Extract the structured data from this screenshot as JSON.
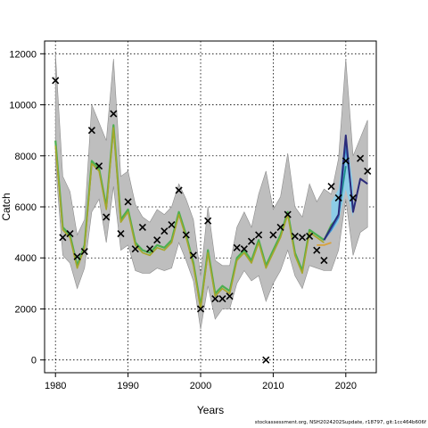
{
  "chart_data": {
    "type": "line",
    "xlabel": "Years",
    "ylabel": "Catch",
    "xlim": [
      1978.5,
      2024.2
    ],
    "ylim": [
      -500,
      12500
    ],
    "x_ticks": [
      1980,
      1990,
      2000,
      2010,
      2020
    ],
    "y_ticks": [
      0,
      2000,
      4000,
      6000,
      8000,
      10000,
      12000
    ],
    "grid": true,
    "colors": {
      "band": "#bebebe",
      "band_edge": "#8c8c8c",
      "inner_band": "#87ceeb",
      "line_dark": "#2b2b7a",
      "line_blue": "#3a86c8",
      "line_teal": "#1f8f8a",
      "line_green": "#4caf50",
      "line_olive": "#a6a62a",
      "line_orange": "#d8a23c"
    },
    "band": {
      "x": [
        1980,
        1981,
        1982,
        1983,
        1984,
        1985,
        1986,
        1987,
        1988,
        1989,
        1990,
        1991,
        1992,
        1993,
        1994,
        1995,
        1996,
        1997,
        1998,
        1999,
        2000,
        2001,
        2002,
        2003,
        2004,
        2005,
        2006,
        2007,
        2008,
        2009,
        2010,
        2011,
        2012,
        2013,
        2014,
        2015,
        2016,
        2017,
        2018,
        2019,
        2020,
        2021,
        2022,
        2023
      ],
      "upper": [
        12000,
        7200,
        6600,
        4900,
        5500,
        10000,
        9300,
        8600,
        11800,
        7200,
        7400,
        6100,
        5600,
        5400,
        5900,
        5700,
        6000,
        6900,
        6300,
        5500,
        3300,
        6000,
        3900,
        3700,
        3700,
        5200,
        5800,
        5200,
        6500,
        7400,
        5900,
        6400,
        8100,
        6000,
        5600,
        6900,
        6200,
        6700,
        6500,
        7900,
        11800,
        8000,
        8700,
        9400
      ],
      "lower": [
        7700,
        4100,
        3800,
        2800,
        3600,
        5800,
        6300,
        4600,
        6800,
        4300,
        4500,
        3500,
        3400,
        3400,
        3600,
        3500,
        3600,
        4600,
        3900,
        3100,
        1200,
        2900,
        1600,
        2000,
        2000,
        3000,
        3500,
        3100,
        3300,
        2300,
        3000,
        3500,
        4300,
        3300,
        2800,
        3700,
        3600,
        3500,
        3500,
        4300,
        6300,
        4100,
        5000,
        5200
      ]
    },
    "inner_band": {
      "x": [
        2018,
        2019,
        2020,
        2021
      ],
      "upper": [
        6200,
        6700,
        8900,
        6900
      ],
      "lower": [
        5000,
        5400,
        6700,
        5600
      ]
    },
    "series": [
      {
        "key": "main",
        "color": "#4caf50",
        "x": [
          1980,
          1981,
          1982,
          1983,
          1984,
          1985,
          1986,
          1987,
          1988,
          1989,
          1990,
          1991,
          1992,
          1993,
          1994,
          1995,
          1996,
          1997,
          1998,
          1999,
          2000,
          2001,
          2002,
          2003,
          2004,
          2005,
          2006,
          2007,
          2008,
          2009,
          2010,
          2011,
          2012,
          2013,
          2014,
          2015,
          2016,
          2017
        ],
        "y": [
          8600,
          5200,
          4900,
          3700,
          4500,
          7800,
          7500,
          6000,
          9200,
          5500,
          5900,
          4600,
          4300,
          4200,
          4500,
          4400,
          4700,
          5800,
          4900,
          3800,
          2100,
          4300,
          2600,
          2900,
          2700,
          4000,
          4300,
          3900,
          4700,
          3700,
          4300,
          4900,
          5800,
          4200,
          3500,
          5100,
          4900,
          4700
        ]
      },
      {
        "key": "dark",
        "color": "#2b2b7a",
        "x": [
          2017,
          2018,
          2019,
          2020,
          2021,
          2022,
          2023
        ],
        "y": [
          4700,
          5200,
          5700,
          8800,
          5800,
          7100,
          6900
        ]
      },
      {
        "key": "blue",
        "color": "#3a86c8",
        "x": [
          2017,
          2018,
          2019,
          2020,
          2021
        ],
        "y": [
          4700,
          5100,
          5600,
          8400,
          6000
        ]
      },
      {
        "key": "teal",
        "color": "#1f8f8a",
        "x": [
          2017,
          2018,
          2019,
          2020
        ],
        "y": [
          4700,
          5200,
          5700,
          7600
        ]
      },
      {
        "key": "green",
        "color": "#4caf50",
        "x": [
          2017,
          2018,
          2019
        ],
        "y": [
          4700,
          5300,
          5600
        ]
      },
      {
        "key": "olive",
        "color": "#a6a62a",
        "x": [
          1980,
          1981,
          1982,
          1983,
          1984,
          1985,
          1986,
          1987,
          1988,
          1989,
          1990,
          1991,
          1992,
          1993,
          1994,
          1995,
          1996,
          1997,
          1998,
          1999,
          2000,
          2001,
          2002,
          2003,
          2004,
          2005,
          2006,
          2007,
          2008,
          2009,
          2010,
          2011,
          2012,
          2013,
          2014,
          2015,
          2016,
          2017
        ],
        "y": [
          8400,
          5100,
          4800,
          3600,
          4400,
          7700,
          7400,
          5900,
          9100,
          5400,
          5800,
          4500,
          4200,
          4100,
          4400,
          4300,
          4600,
          5700,
          4800,
          3700,
          2000,
          4200,
          2500,
          2800,
          2600,
          3900,
          4200,
          3800,
          4600,
          3600,
          4200,
          4800,
          5700,
          4100,
          3400,
          5000,
          4800,
          4600
        ]
      },
      {
        "key": "orange",
        "color": "#d8a23c",
        "x": [
          2016,
          2017,
          2018
        ],
        "y": [
          4500,
          4500,
          4600
        ]
      }
    ],
    "points": {
      "x": [
        1980,
        1981,
        1982,
        1983,
        1984,
        1985,
        1986,
        1987,
        1988,
        1989,
        1990,
        1991,
        1992,
        1993,
        1994,
        1995,
        1996,
        1997,
        1998,
        1999,
        2000,
        2001,
        2002,
        2003,
        2004,
        2005,
        2006,
        2007,
        2008,
        2009,
        2010,
        2011,
        2012,
        2013,
        2014,
        2015,
        2016,
        2017,
        2018,
        2019,
        2020,
        2021,
        2022,
        2023
      ],
      "y": [
        10950,
        4800,
        4950,
        4050,
        4250,
        9000,
        7600,
        5600,
        9650,
        4950,
        6200,
        4350,
        5200,
        4350,
        4700,
        5050,
        5300,
        6650,
        4900,
        4100,
        2000,
        5450,
        2400,
        2400,
        2500,
        4400,
        4350,
        4650,
        4900,
        0,
        4900,
        5200,
        5700,
        4850,
        4800,
        4850,
        4300,
        3900,
        6800,
        6350,
        7800,
        6350,
        7900,
        7400
      ]
    }
  },
  "footer_text": "stockassessment.org, NSH2024202Supdate, r18797, git:1cc464b606f"
}
